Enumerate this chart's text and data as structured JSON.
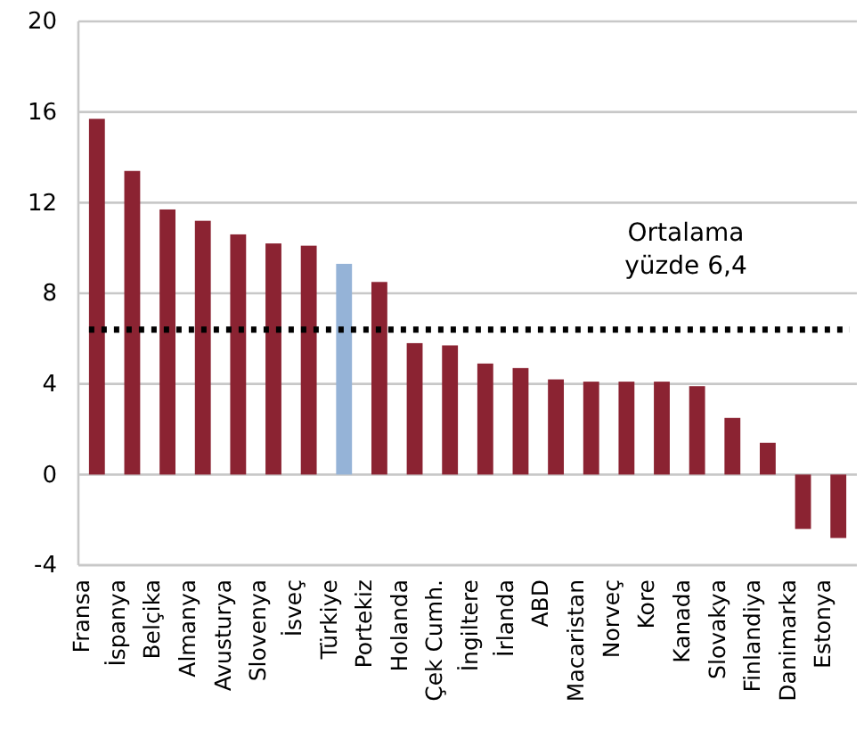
{
  "chart_data": {
    "type": "bar",
    "categories": [
      "Fransa",
      "İspanya",
      "Belçika",
      "Almanya",
      "Avusturya",
      "Slovenya",
      "İsveç",
      "Türkiye",
      "Portekiz",
      "Holanda",
      "Çek Cumh.",
      "İngiltere",
      "İrlanda",
      "ABD",
      "Macaristan",
      "Norveç",
      "Kore",
      "Kanada",
      "Slovakya",
      "Finlandiya",
      "Danimarka",
      "Estonya"
    ],
    "values": [
      15.7,
      13.4,
      11.7,
      11.2,
      10.6,
      10.2,
      10.1,
      9.3,
      8.5,
      5.8,
      5.7,
      4.9,
      4.7,
      4.2,
      4.1,
      4.1,
      4.1,
      3.9,
      2.5,
      1.4,
      -2.4,
      -2.8
    ],
    "colors": [
      "#8b2332",
      "#8b2332",
      "#8b2332",
      "#8b2332",
      "#8b2332",
      "#8b2332",
      "#8b2332",
      "#95b3d7",
      "#8b2332",
      "#8b2332",
      "#8b2332",
      "#8b2332",
      "#8b2332",
      "#8b2332",
      "#8b2332",
      "#8b2332",
      "#8b2332",
      "#8b2332",
      "#8b2332",
      "#8b2332",
      "#8b2332",
      "#8b2332"
    ],
    "ylim": [
      -4,
      20
    ],
    "yticks": [
      -4,
      0,
      4,
      8,
      12,
      16,
      20
    ],
    "grid": "y",
    "ref_lines": [
      {
        "axis": "y",
        "value": 6.4,
        "label": "Ortalama\nyüzde 6,4",
        "color": "#000000",
        "line_style": "dotted"
      }
    ]
  }
}
